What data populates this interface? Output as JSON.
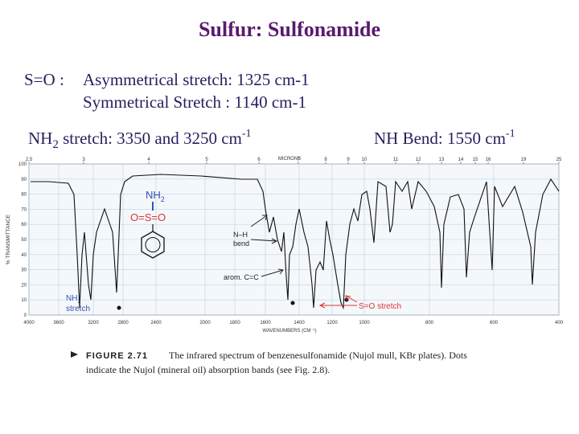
{
  "title": "Sulfur: Sulfonamide",
  "so_line": {
    "label": "S=O :",
    "asym": "Asymmetrical stretch: 1325 cm-1",
    "sym": "Symmetrical Stretch : 1140 cm-1"
  },
  "nh_stretch": {
    "a": "NH",
    "sub": "2",
    "b": " stretch:  3350 and 3250 cm",
    "sup": "-1"
  },
  "nh_bend": {
    "a": "NH Bend: 1550 cm",
    "sup": "-1"
  },
  "spectrum": {
    "top_axis_title": "MICRONS",
    "top_ticks": [
      "2.5",
      "3",
      "4",
      "5",
      "6",
      "7",
      "8",
      "9",
      "10",
      "11",
      "12",
      "13",
      "14",
      "15",
      "16",
      "19",
      "25"
    ],
    "y_title": "% TRANSMITTANCE",
    "y_ticks": [
      "100",
      "90",
      "80",
      "70",
      "60",
      "50",
      "40",
      "30",
      "20",
      "10",
      "0"
    ],
    "x_title": "WAVENUMBERS (CM⁻¹)",
    "x_ticks": [
      "4000",
      "3600",
      "3200",
      "2800",
      "2400",
      "2000",
      "1800",
      "1600",
      "1400",
      "1200",
      "1000",
      "800",
      "600",
      "400"
    ],
    "annotations": {
      "nh2": {
        "a": "NH",
        "sub": "2"
      },
      "oso": "O=S=O",
      "nh_bend": [
        "N–H",
        "bend"
      ],
      "arom": "arom. C=C",
      "nh2_stretch": {
        "a": "NH",
        "sub": "2",
        "b": "stretch"
      },
      "so_stretch": "S=O stretch"
    }
  },
  "caption": {
    "label": "FIGURE 2.71",
    "lines": [
      "The infrared spectrum of benzenesulfonamide (Nujol mull, KBr plates). Dots",
      "indicate the Nujol (mineral oil) absorption bands (see Fig. 2.8)."
    ]
  }
}
